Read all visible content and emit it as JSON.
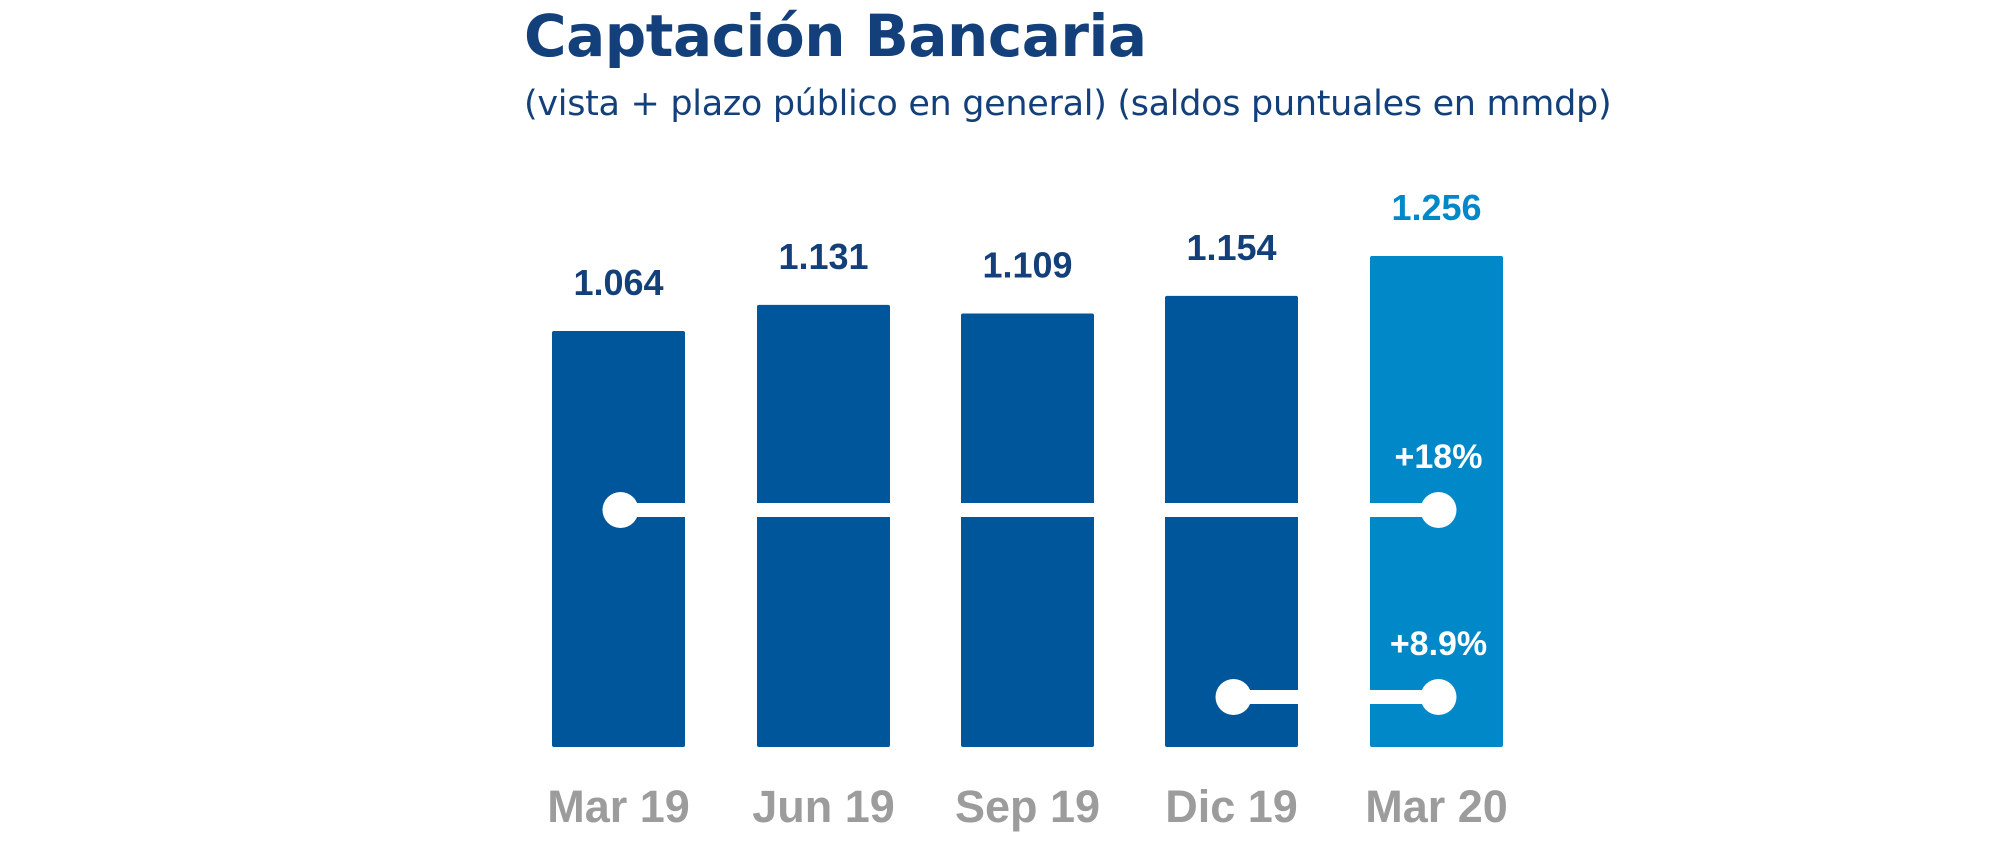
{
  "chart_data": {
    "type": "bar",
    "title": "Captación Bancaria",
    "subtitle": "(vista + plazo público en general) (saldos puntuales en mmdp)",
    "categories": [
      "Mar 19",
      "Jun 19",
      "Sep 19",
      "Dic 19",
      "Mar 20"
    ],
    "values": [
      1064,
      1131,
      1109,
      1154,
      1256
    ],
    "value_labels": [
      "1.064",
      "1.131",
      "1.109",
      "1.154",
      "1.256"
    ],
    "bar_colors": [
      "#00569a",
      "#00569a",
      "#00569a",
      "#00569a",
      "#0088c9"
    ],
    "label_colors": [
      "#13407a",
      "#13407a",
      "#13407a",
      "#13407a",
      "#0088c9"
    ],
    "ylim": [
      0,
      1256
    ],
    "grid": false,
    "legend": "none",
    "annotations": [
      {
        "text": "+18%",
        "from_category": "Mar 19",
        "to_category": "Mar 20"
      },
      {
        "text": "+8.9%",
        "from_category": "Dic 19",
        "to_category": "Mar 20"
      }
    ]
  }
}
